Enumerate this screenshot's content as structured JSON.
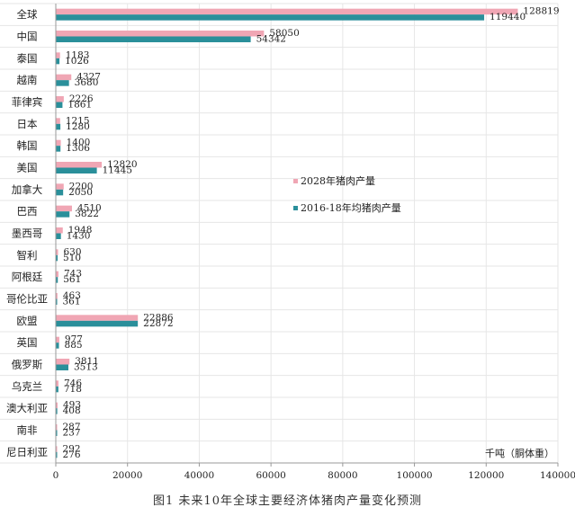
{
  "chart_data": {
    "type": "bar",
    "orientation": "horizontal",
    "categories": [
      "全球",
      "中国",
      "泰国",
      "越南",
      "菲律宾",
      "日本",
      "韩国",
      "美国",
      "加拿大",
      "巴西",
      "墨西哥",
      "智利",
      "阿根廷",
      "哥伦比亚",
      "欧盟",
      "英国",
      "俄罗斯",
      "乌克兰",
      "澳大利亚",
      "南非",
      "尼日利亚"
    ],
    "series": [
      {
        "name": "2028年猪肉产量",
        "color": "#f0a6b4",
        "values": [
          128819,
          58050,
          1183,
          4327,
          2226,
          1215,
          1400,
          12820,
          2200,
          4510,
          1948,
          630,
          743,
          463,
          22886,
          977,
          3811,
          746,
          493,
          287,
          292
        ]
      },
      {
        "name": "2016-18年均猪肉产量",
        "color": "#2a8f9a",
        "values": [
          119440,
          54342,
          1026,
          3680,
          1861,
          1280,
          1306,
          11445,
          2050,
          3822,
          1430,
          510,
          561,
          361,
          22872,
          885,
          3513,
          718,
          408,
          237,
          276
        ]
      }
    ],
    "xlim": [
      0,
      140000
    ],
    "xticks": [
      0,
      20000,
      40000,
      60000,
      80000,
      100000,
      120000,
      140000
    ],
    "unit_label": "千吨（胴体重）",
    "legend_position": "center-right",
    "grid": true
  },
  "caption": "图1 未来10年全球主要经济体猪肉产量变化预测"
}
